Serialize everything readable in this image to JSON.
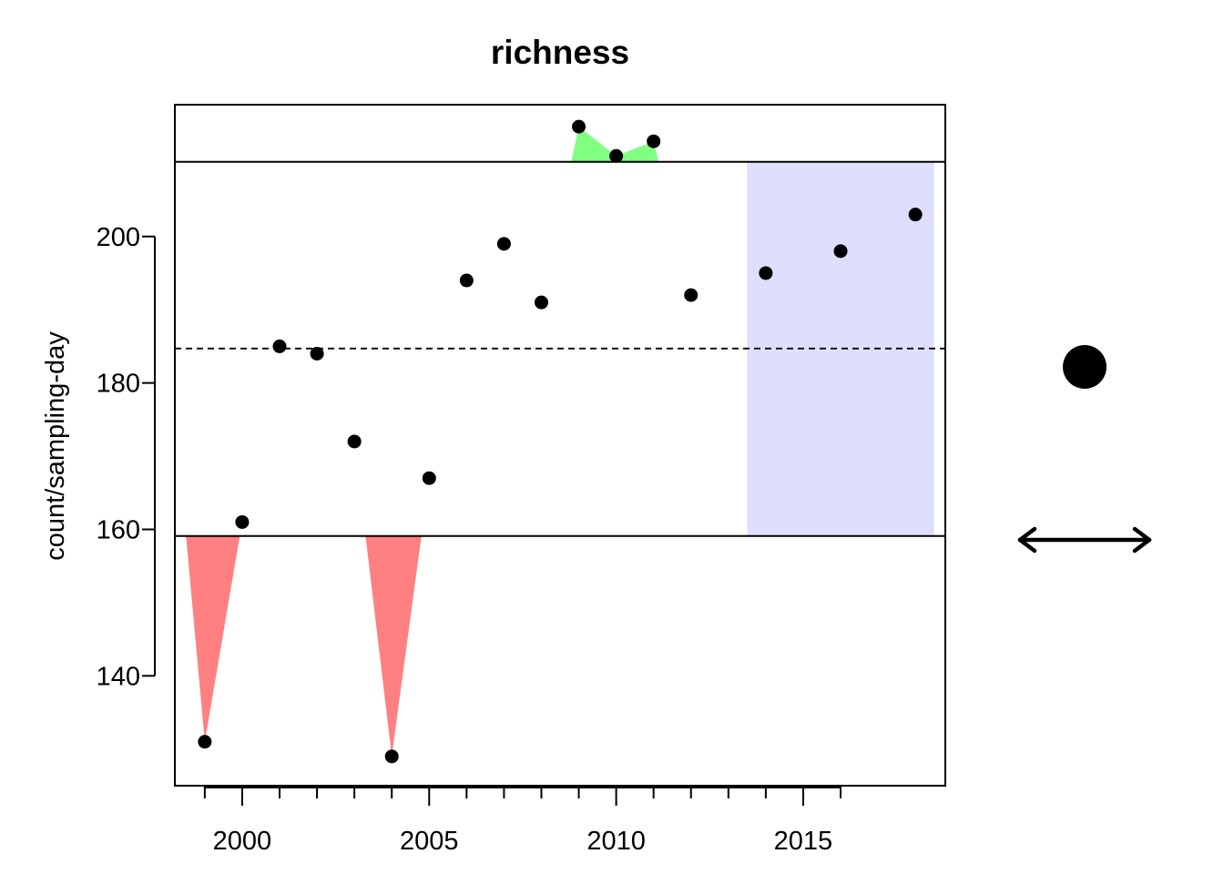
{
  "chart_data": {
    "type": "scatter",
    "title": "richness",
    "xlabel": "",
    "ylabel": "count/sampling-day",
    "x": [
      1999,
      2000,
      2001,
      2002,
      2003,
      2004,
      2005,
      2006,
      2007,
      2008,
      2009,
      2010,
      2011,
      2012,
      2014,
      2016,
      2018
    ],
    "y": [
      131,
      161,
      185,
      184,
      172,
      129,
      167,
      194,
      199,
      191,
      215,
      211,
      213,
      192,
      195,
      198,
      203
    ],
    "xlim": [
      1998.2,
      2018.8
    ],
    "ylim": [
      125,
      218
    ],
    "x_ticks_major": [
      2000,
      2005,
      2010,
      2015
    ],
    "x_ticks_minor": [
      1999,
      2001,
      2002,
      2003,
      2004,
      2006,
      2007,
      2008,
      2009,
      2011,
      2012,
      2013,
      2014,
      2016
    ],
    "y_ticks": [
      140,
      160,
      180,
      200
    ],
    "mean_line": 184.7,
    "upper_limit": 210.2,
    "lower_limit": 159.1,
    "recent_period": [
      2013.5,
      2018.5
    ],
    "grid": false,
    "legend": "none",
    "colors": {
      "above": "#80ff80",
      "below": "#ff8080",
      "recent_shade": "#dedeff",
      "points": "#000000"
    },
    "side_indicators": {
      "status_icon": "filled-circle",
      "trend_icon": "double-headed-arrow"
    }
  }
}
